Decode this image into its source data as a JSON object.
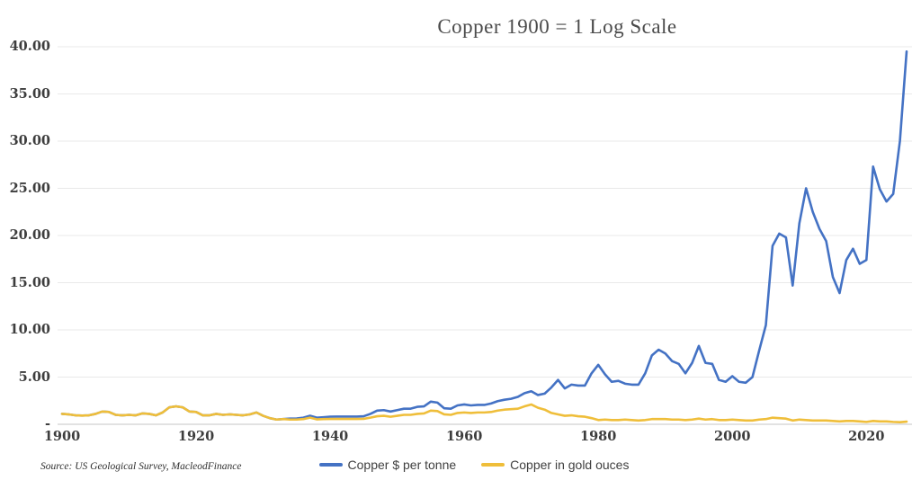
{
  "title": "Copper 1900 = 1 Log Scale",
  "source_note": "Source: US Geological Survey, MacleodFinance",
  "colors": {
    "copper_usd": "#4472C4",
    "copper_gold": "#EFBE3A",
    "gridline": "#e9e9e9",
    "axis_line": "#d8d8d8",
    "label_text": "#3d3d3d"
  },
  "chart_data": {
    "type": "line",
    "title": "Copper 1900 = 1 Log Scale",
    "xlabel": "",
    "ylabel": "",
    "grid": true,
    "legend_position": "bottom",
    "xlim": [
      1900,
      2026
    ],
    "ylim": [
      0,
      40
    ],
    "x_ticks": [
      1900,
      1920,
      1940,
      1960,
      1980,
      2000,
      2020
    ],
    "y_ticks": [
      "40.00",
      "35.00",
      "30.00",
      "25.00",
      "20.00",
      "15.00",
      "10.00",
      "5.00",
      "-"
    ],
    "y_tick_values": [
      40,
      35,
      30,
      25,
      20,
      15,
      10,
      5,
      0
    ],
    "x": [
      1900,
      1901,
      1902,
      1903,
      1904,
      1905,
      1906,
      1907,
      1908,
      1909,
      1910,
      1911,
      1912,
      1913,
      1914,
      1915,
      1916,
      1917,
      1918,
      1919,
      1920,
      1921,
      1922,
      1923,
      1924,
      1925,
      1926,
      1927,
      1928,
      1929,
      1930,
      1931,
      1932,
      1933,
      1934,
      1935,
      1936,
      1937,
      1938,
      1939,
      1940,
      1941,
      1942,
      1943,
      1944,
      1945,
      1946,
      1947,
      1948,
      1949,
      1950,
      1951,
      1952,
      1953,
      1954,
      1955,
      1956,
      1957,
      1958,
      1959,
      1960,
      1961,
      1962,
      1963,
      1964,
      1965,
      1966,
      1967,
      1968,
      1969,
      1970,
      1971,
      1972,
      1973,
      1974,
      1975,
      1976,
      1977,
      1978,
      1979,
      1980,
      1981,
      1982,
      1983,
      1984,
      1985,
      1986,
      1987,
      1988,
      1989,
      1990,
      1991,
      1992,
      1993,
      1994,
      1995,
      1996,
      1997,
      1998,
      1999,
      2000,
      2001,
      2002,
      2003,
      2004,
      2005,
      2006,
      2007,
      2008,
      2009,
      2010,
      2011,
      2012,
      2013,
      2014,
      2015,
      2016,
      2017,
      2018,
      2019,
      2020,
      2021,
      2022,
      2023,
      2024,
      2025,
      2026
    ],
    "series": [
      {
        "name": "Copper $ per tonne",
        "color": "#4472C4",
        "values": [
          1.1,
          1.05,
          0.95,
          0.92,
          0.95,
          1.1,
          1.35,
          1.3,
          1.0,
          0.95,
          1.0,
          0.95,
          1.15,
          1.1,
          0.95,
          1.25,
          1.8,
          1.9,
          1.8,
          1.35,
          1.3,
          0.95,
          0.95,
          1.1,
          1.0,
          1.05,
          1.0,
          0.95,
          1.05,
          1.25,
          0.9,
          0.65,
          0.5,
          0.55,
          0.6,
          0.62,
          0.7,
          0.9,
          0.7,
          0.75,
          0.8,
          0.82,
          0.82,
          0.82,
          0.82,
          0.85,
          1.1,
          1.45,
          1.5,
          1.35,
          1.5,
          1.65,
          1.65,
          1.85,
          1.9,
          2.4,
          2.3,
          1.7,
          1.65,
          2.0,
          2.1,
          2.0,
          2.05,
          2.05,
          2.2,
          2.45,
          2.6,
          2.7,
          2.9,
          3.3,
          3.5,
          3.1,
          3.25,
          3.9,
          4.7,
          3.8,
          4.2,
          4.1,
          4.1,
          5.4,
          6.3,
          5.3,
          4.5,
          4.6,
          4.3,
          4.2,
          4.2,
          5.4,
          7.3,
          7.9,
          7.5,
          6.7,
          6.4,
          5.4,
          6.5,
          8.3,
          6.5,
          6.4,
          4.7,
          4.5,
          5.1,
          4.5,
          4.4,
          5.0,
          7.8,
          10.5,
          18.9,
          20.2,
          19.8,
          14.7,
          21.3,
          25.0,
          22.5,
          20.7,
          19.4,
          15.6,
          13.9,
          17.4,
          18.6,
          17.0,
          17.4,
          27.3,
          24.9,
          23.6,
          24.4,
          30.0,
          39.5
        ]
      },
      {
        "name": "Copper in gold ouces",
        "color": "#EFBE3A",
        "values": [
          1.1,
          1.05,
          0.95,
          0.92,
          0.95,
          1.1,
          1.35,
          1.3,
          1.0,
          0.95,
          1.0,
          0.95,
          1.15,
          1.1,
          0.95,
          1.25,
          1.8,
          1.9,
          1.8,
          1.35,
          1.3,
          0.95,
          0.95,
          1.1,
          1.0,
          1.05,
          1.0,
          0.95,
          1.05,
          1.25,
          0.9,
          0.65,
          0.5,
          0.55,
          0.5,
          0.5,
          0.55,
          0.7,
          0.52,
          0.55,
          0.57,
          0.57,
          0.57,
          0.57,
          0.57,
          0.58,
          0.7,
          0.85,
          0.9,
          0.8,
          0.9,
          1.0,
          1.0,
          1.1,
          1.15,
          1.45,
          1.4,
          1.05,
          1.0,
          1.2,
          1.25,
          1.2,
          1.25,
          1.25,
          1.3,
          1.45,
          1.55,
          1.6,
          1.65,
          1.9,
          2.1,
          1.75,
          1.55,
          1.2,
          1.05,
          0.9,
          0.95,
          0.85,
          0.8,
          0.65,
          0.45,
          0.5,
          0.45,
          0.45,
          0.5,
          0.45,
          0.4,
          0.45,
          0.55,
          0.55,
          0.55,
          0.5,
          0.5,
          0.45,
          0.5,
          0.6,
          0.5,
          0.55,
          0.45,
          0.45,
          0.5,
          0.45,
          0.4,
          0.4,
          0.5,
          0.55,
          0.7,
          0.65,
          0.6,
          0.4,
          0.5,
          0.45,
          0.4,
          0.4,
          0.4,
          0.35,
          0.3,
          0.35,
          0.35,
          0.3,
          0.25,
          0.35,
          0.3,
          0.3,
          0.25,
          0.22,
          0.28
        ]
      }
    ]
  },
  "legend": {
    "items": [
      {
        "label": "Copper $ per tonne"
      },
      {
        "label": "Copper in gold ouces"
      }
    ]
  }
}
